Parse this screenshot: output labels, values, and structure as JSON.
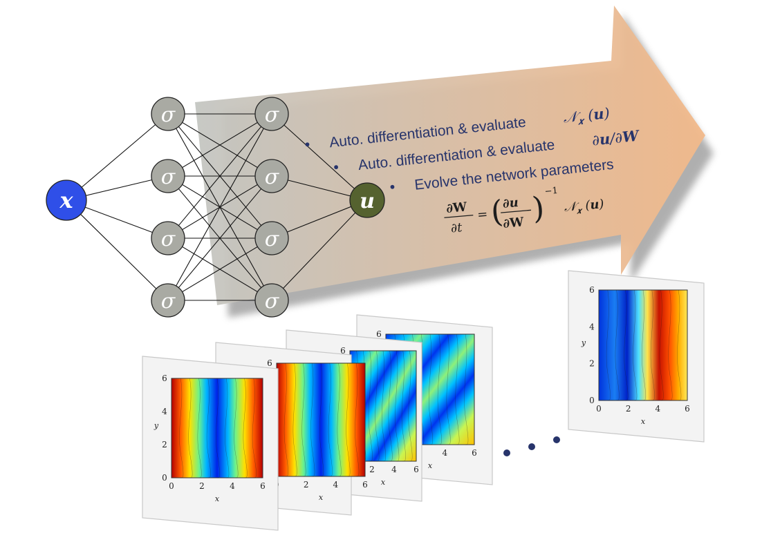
{
  "network": {
    "input": {
      "symbol": "x",
      "color": "#2f4fe8"
    },
    "hidden_activation": "σ",
    "hidden_node_color": "#a9aaa3",
    "output": {
      "symbol": "u",
      "color": "#55622f"
    },
    "layers": [
      1,
      4,
      4,
      1
    ]
  },
  "arrow": {
    "gradient_from": "#c4c6c2",
    "gradient_to": "#f2b98a"
  },
  "bullets": [
    {
      "label": "Auto. differentiation & evaluate"
    },
    {
      "label": "Auto. differentiation & evaluate"
    },
    {
      "label": "Evolve the network parameters"
    }
  ],
  "equation_text": "∂W/∂t = (∂u/∂W)^-1 N_x(u)",
  "text_color": "#27346b",
  "snapshots": {
    "x_tick_labels": [
      "0",
      "2",
      "4",
      "6"
    ],
    "y_tick_labels": [
      "0",
      "2",
      "4",
      "6"
    ],
    "x_axis_label": "x",
    "y_axis_label": "y",
    "ellipsis": "• • •"
  }
}
